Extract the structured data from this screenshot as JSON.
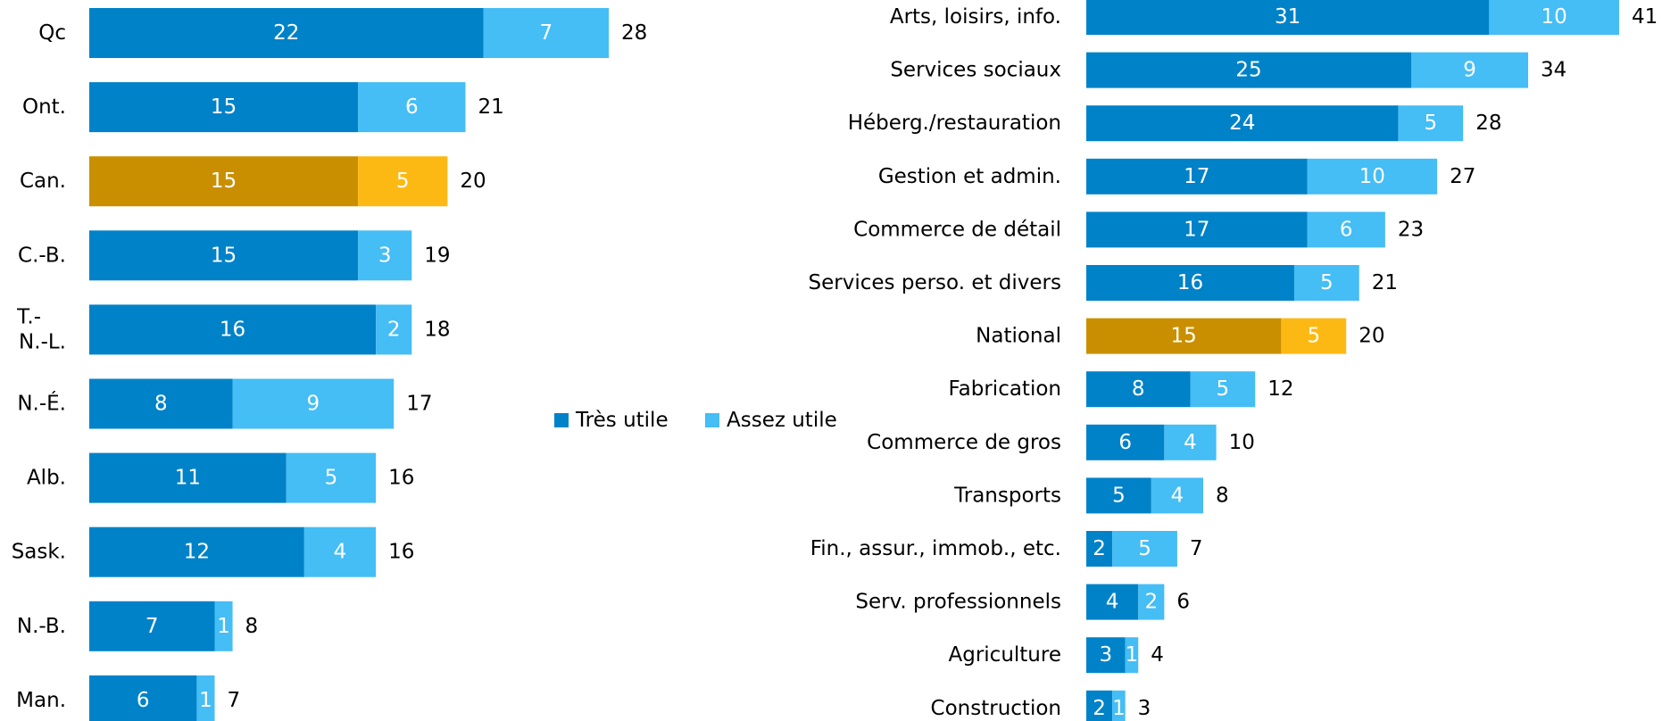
{
  "chart_data": [
    {
      "type": "stacked-bar",
      "orientation": "horizontal",
      "categories": [
        "Qc",
        "Ont.",
        "Can.",
        "C.-B.",
        "T.-N.-L.",
        "N.-É.",
        "Alb.",
        "Sask.",
        "N.-B.",
        "Man."
      ],
      "series": [
        {
          "name": "Très utile",
          "color": "#0082c8",
          "highlight_color": "#c98f00",
          "values": [
            22,
            15,
            15,
            15,
            16,
            8,
            11,
            12,
            7,
            6
          ]
        },
        {
          "name": "Assez utile",
          "color": "#45bdf5",
          "highlight_color": "#fdb913",
          "values": [
            7,
            6,
            5,
            3,
            2,
            9,
            5,
            4,
            1,
            1
          ]
        }
      ],
      "totals": [
        28,
        21,
        20,
        19,
        18,
        17,
        16,
        16,
        8,
        7
      ],
      "highlight": 2,
      "legend": "center"
    },
    {
      "type": "stacked-bar",
      "orientation": "horizontal",
      "categories": [
        "Arts, loisirs, info.",
        "Services sociaux",
        "Héberg./restauration",
        "Gestion et admin.",
        "Commerce de détail",
        "Services perso. et divers",
        "National",
        "Fabrication",
        "Commerce de gros",
        "Transports",
        "Fin., assur., immob., etc.",
        "Serv. professionnels",
        "Agriculture",
        "Construction"
      ],
      "series": [
        {
          "color": "#0082c8",
          "highlight_color": "#c98f00",
          "values": [
            31,
            25,
            24,
            17,
            17,
            16,
            15,
            8,
            6,
            5,
            2,
            4,
            3,
            2
          ]
        },
        {
          "color": "#45bdf5",
          "highlight_color": "#fdb913",
          "values": [
            10,
            9,
            5,
            10,
            6,
            5,
            5,
            5,
            4,
            4,
            5,
            2,
            1,
            1
          ]
        }
      ],
      "totals": [
        41,
        34,
        28,
        27,
        23,
        21,
        20,
        12,
        10,
        8,
        7,
        6,
        4,
        3
      ],
      "highlight": 6
    }
  ]
}
